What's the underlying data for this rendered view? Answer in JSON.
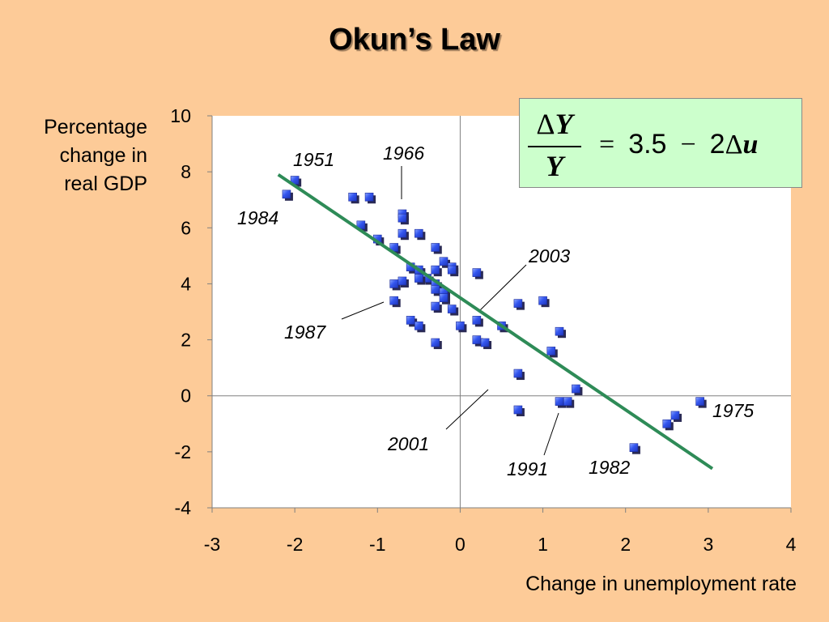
{
  "title": "Okun’s Law",
  "ylabel_lines": [
    "Percentage",
    "change in",
    "real GDP"
  ],
  "xlabel": "Change in unemployment rate",
  "formula": {
    "delta": "Δ",
    "numerator_var": "Y",
    "denominator": "Y",
    "equals": "=",
    "constant": "3.5",
    "minus": "−",
    "coefficient": "2",
    "delta2": "Δ",
    "rhs_var": "u"
  },
  "colors": {
    "background": "#FDCB98",
    "point": "#3355EE",
    "point_shadow": "#2A2A55",
    "line": "#2E8B57",
    "formula_bg": "#CCFFCC"
  },
  "chart_data": {
    "type": "scatter",
    "xlabel": "Change in unemployment rate",
    "ylabel": "Percentage change in real GDP",
    "xlim": [
      -3,
      4
    ],
    "ylim": [
      -4,
      10
    ],
    "xticks": [
      -3,
      -2,
      -1,
      0,
      1,
      2,
      3,
      4
    ],
    "yticks": [
      -4,
      -2,
      0,
      2,
      4,
      6,
      8,
      10
    ],
    "grid": false,
    "points": [
      [
        -2.1,
        7.2
      ],
      [
        -2.0,
        7.7
      ],
      [
        -1.3,
        7.1
      ],
      [
        -1.1,
        7.1
      ],
      [
        -1.2,
        6.1
      ],
      [
        -1.0,
        5.6
      ],
      [
        -0.8,
        5.3
      ],
      [
        -0.7,
        6.5
      ],
      [
        -0.7,
        6.35
      ],
      [
        -0.7,
        5.8
      ],
      [
        -0.5,
        5.8
      ],
      [
        -0.3,
        5.3
      ],
      [
        -0.6,
        4.6
      ],
      [
        -0.5,
        4.5
      ],
      [
        -0.4,
        4.2
      ],
      [
        -0.5,
        4.2
      ],
      [
        -0.3,
        4.5
      ],
      [
        -0.2,
        4.8
      ],
      [
        -0.1,
        4.6
      ],
      [
        -0.1,
        4.5
      ],
      [
        0.2,
        4.4
      ],
      [
        -0.8,
        4.0
      ],
      [
        -0.7,
        4.1
      ],
      [
        -0.3,
        4.0
      ],
      [
        -0.3,
        3.8
      ],
      [
        -0.2,
        3.7
      ],
      [
        -0.2,
        3.5
      ],
      [
        -0.8,
        3.4
      ],
      [
        -0.3,
        3.2
      ],
      [
        -0.1,
        3.1
      ],
      [
        -0.6,
        2.7
      ],
      [
        -0.5,
        2.5
      ],
      [
        0.0,
        2.5
      ],
      [
        0.2,
        2.7
      ],
      [
        0.5,
        2.5
      ],
      [
        0.7,
        3.3
      ],
      [
        1.0,
        3.4
      ],
      [
        0.2,
        2.0
      ],
      [
        0.3,
        1.9
      ],
      [
        -0.3,
        1.9
      ],
      [
        1.2,
        2.3
      ],
      [
        1.1,
        1.6
      ],
      [
        0.7,
        0.8
      ],
      [
        0.7,
        -0.5
      ],
      [
        1.4,
        0.25
      ],
      [
        1.2,
        -0.2
      ],
      [
        1.3,
        -0.2
      ],
      [
        2.1,
        -1.85
      ],
      [
        2.5,
        -1.0
      ],
      [
        2.6,
        -0.7
      ],
      [
        2.9,
        -0.2
      ]
    ],
    "fit_line": {
      "intercept": 3.5,
      "slope": -2,
      "x_range": [
        -2.2,
        3.05
      ]
    },
    "annotations": [
      {
        "label": "1951",
        "x": -2.0,
        "y": 7.7
      },
      {
        "label": "1966",
        "x": -0.7,
        "y": 6.5
      },
      {
        "label": "1984",
        "x": -2.1,
        "y": 7.2
      },
      {
        "label": "2003",
        "x": 0.2,
        "y": 2.7
      },
      {
        "label": "1987",
        "x": -0.9,
        "y": 3.4
      },
      {
        "label": "1975",
        "x": 2.9,
        "y": -0.2
      },
      {
        "label": "2001",
        "x": 0.3,
        "y": 0.7
      },
      {
        "label": "1991",
        "x": 1.2,
        "y": -0.6
      },
      {
        "label": "1982",
        "x": 2.1,
        "y": -1.85
      }
    ]
  }
}
